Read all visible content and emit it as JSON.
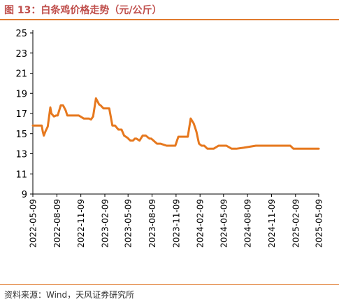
{
  "title": "图 13：白条鸡价格走势（元/公斤）",
  "source": "资料来源：Wind，天风证券研究所",
  "colors": {
    "line": "#e6781e",
    "axis": "#000000",
    "title": "#c0504d",
    "rule": "#e07b2f"
  },
  "chart_data": {
    "type": "line",
    "title": "图 13：白条鸡价格走势（元/公斤）",
    "xlabel": "",
    "ylabel": "",
    "xlim": [
      "2022-05-09",
      "2025-05-09"
    ],
    "ylim": [
      9,
      25
    ],
    "yticks": [
      9,
      11,
      13,
      15,
      17,
      19,
      21,
      23,
      25
    ],
    "xticks": [
      "2022-05-09",
      "2022-08-09",
      "2022-11-09",
      "2023-02-09",
      "2023-05-09",
      "2023-08-09",
      "2023-11-09",
      "2024-02-09",
      "2024-05-09",
      "2024-08-09",
      "2024-11-09",
      "2025-02-09",
      "2025-05-09"
    ],
    "grid": false,
    "legend": "none",
    "series": [
      {
        "x": [
          "2022-05-09",
          "2022-06-12",
          "2022-06-16",
          "2022-06-20",
          "2022-06-26",
          "2022-07-05",
          "2022-07-15",
          "2022-07-19",
          "2022-07-29",
          "2022-08-06",
          "2022-08-12",
          "2022-08-24",
          "2022-09-02",
          "2022-09-12",
          "2022-09-18",
          "2022-09-28",
          "2022-10-12",
          "2022-11-01",
          "2022-11-14",
          "2022-11-20",
          "2022-12-10",
          "2022-12-18",
          "2022-12-26",
          "2023-01-06",
          "2023-01-18",
          "2023-01-24",
          "2023-02-04",
          "2023-02-16",
          "2023-02-26",
          "2023-03-10",
          "2023-03-20",
          "2023-04-02",
          "2023-04-14",
          "2023-04-24",
          "2023-05-06",
          "2023-05-18",
          "2023-05-28",
          "2023-06-04",
          "2023-06-10",
          "2023-06-22",
          "2023-07-04",
          "2023-07-16",
          "2023-07-30",
          "2023-08-06",
          "2023-08-28",
          "2023-09-10",
          "2023-10-04",
          "2023-10-16",
          "2023-11-06",
          "2023-11-18",
          "2023-12-24",
          "2024-01-04",
          "2024-01-16",
          "2024-01-26",
          "2024-02-05",
          "2024-02-15",
          "2024-02-25",
          "2024-03-08",
          "2024-03-20",
          "2024-04-01",
          "2024-04-20",
          "2024-05-20",
          "2024-06-09",
          "2024-06-27",
          "2024-07-25",
          "2024-09-10",
          "2024-10-02",
          "2024-11-09",
          "2025-01-20",
          "2025-02-01",
          "2025-03-20",
          "2025-05-09"
        ],
        "values": [
          15.8,
          15.8,
          15.2,
          14.8,
          15.2,
          15.7,
          17.6,
          17.0,
          16.7,
          16.8,
          16.8,
          17.8,
          17.8,
          17.3,
          16.8,
          16.8,
          16.8,
          16.8,
          16.6,
          16.5,
          16.5,
          16.4,
          16.7,
          18.5,
          17.9,
          17.8,
          17.5,
          17.5,
          17.5,
          15.8,
          15.8,
          15.4,
          15.4,
          14.8,
          14.6,
          14.3,
          14.3,
          14.5,
          14.5,
          14.3,
          14.8,
          14.8,
          14.5,
          14.5,
          14.0,
          14.0,
          13.8,
          13.8,
          13.8,
          14.7,
          14.7,
          16.5,
          16.0,
          15.2,
          14.0,
          13.8,
          13.8,
          13.5,
          13.5,
          13.5,
          13.8,
          13.8,
          13.5,
          13.5,
          13.6,
          13.8,
          13.8,
          13.8,
          13.8,
          13.5,
          13.5,
          13.5
        ]
      }
    ]
  }
}
